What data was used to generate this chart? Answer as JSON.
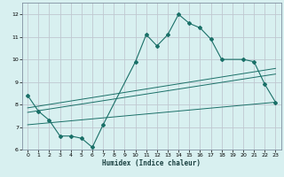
{
  "title": "",
  "xlabel": "Humidex (Indice chaleur)",
  "bg_color": "#d8f0f0",
  "grid_color": "#c0c8d0",
  "line_color": "#1a7068",
  "xlim": [
    -0.5,
    23.5
  ],
  "ylim": [
    6,
    12.5
  ],
  "yticks": [
    6,
    7,
    8,
    9,
    10,
    11,
    12
  ],
  "xticks": [
    0,
    1,
    2,
    3,
    4,
    5,
    6,
    7,
    8,
    9,
    10,
    11,
    12,
    13,
    14,
    15,
    16,
    17,
    18,
    19,
    20,
    21,
    22,
    23
  ],
  "curve1_x": [
    0,
    1,
    2,
    3,
    4,
    5,
    6,
    7,
    10,
    11,
    12,
    13,
    14,
    15,
    16,
    17,
    18,
    20,
    21,
    22,
    23
  ],
  "curve1_y": [
    8.4,
    7.7,
    7.3,
    6.6,
    6.6,
    6.5,
    6.1,
    7.1,
    9.9,
    11.1,
    10.6,
    11.1,
    12.0,
    11.6,
    11.4,
    10.9,
    10.0,
    10.0,
    9.9,
    8.9,
    8.1
  ],
  "line1_x": [
    0,
    23
  ],
  "line1_y": [
    7.85,
    9.6
  ],
  "line2_x": [
    0,
    23
  ],
  "line2_y": [
    7.65,
    9.35
  ],
  "line3_x": [
    0,
    23
  ],
  "line3_y": [
    7.1,
    8.1
  ]
}
